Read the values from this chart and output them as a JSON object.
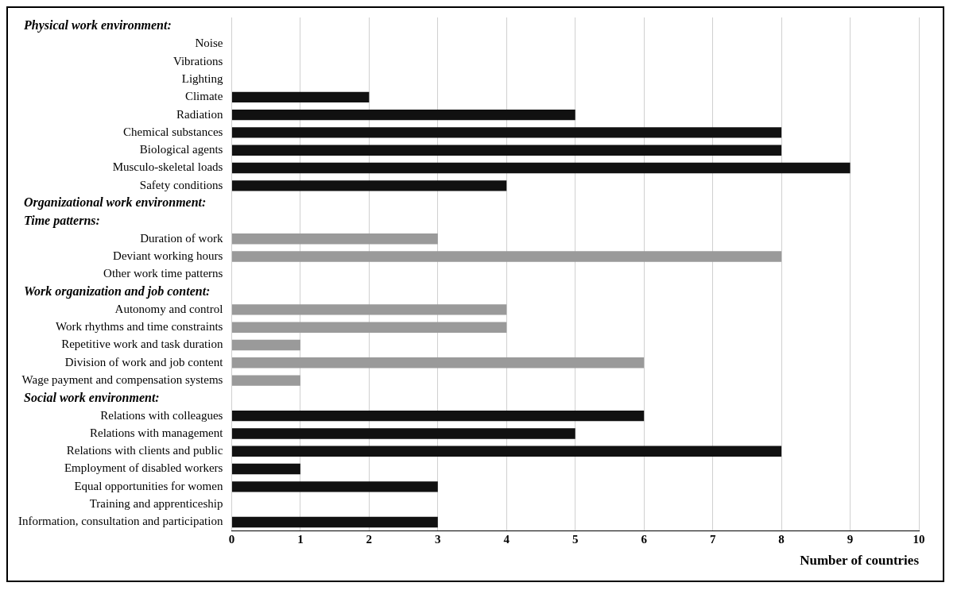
{
  "chart_data": {
    "type": "bar",
    "orientation": "horizontal",
    "xlabel": "Number of countries",
    "annotations": [
      "Physical work environment:",
      "Organizational work environment:",
      "Time patterns:",
      "Work organization and job content:",
      "Social work environment:"
    ],
    "categories": [
      null,
      "Noise",
      "Vibrations",
      "Lighting",
      "Climate",
      "Radiation",
      "Chemical substances",
      "Biological agents",
      "Musculo-skeletal loads",
      "Safety conditions",
      null,
      null,
      "Duration of work",
      "Deviant working hours",
      "Other work time patterns",
      null,
      "Autonomy and control",
      "Work rhythms and time constraints",
      "Repetitive work and task duration",
      "Division of work and job content",
      "Wage payment and compensation systems",
      null,
      "Relations with colleagues",
      "Relations with management",
      "Relations with clients and public",
      "Employment of disabled workers",
      "Equal opportunities for women",
      "Training and apprenticeship",
      "Information, consultation and participation"
    ],
    "values": [
      null,
      0,
      0,
      0,
      2,
      5,
      8,
      8,
      9,
      4,
      null,
      null,
      3,
      8,
      0,
      null,
      4,
      4,
      1,
      6,
      1,
      null,
      6,
      5,
      8,
      1,
      3,
      0,
      3
    ],
    "colors": [
      "#111111",
      "#111111",
      "#111111",
      "#111111",
      "#111111",
      "#111111",
      "#111111",
      "#111111",
      "#111111",
      "#111111",
      "#9a9a9a",
      "#9a9a9a",
      "#9a9a9a",
      "#9a9a9a",
      "#9a9a9a",
      "#9a9a9a",
      "#9a9a9a",
      "#9a9a9a",
      "#9a9a9a",
      "#9a9a9a",
      "#9a9a9a",
      "#111111",
      "#111111",
      "#111111",
      "#111111",
      "#111111",
      "#111111",
      "#111111",
      "#111111"
    ],
    "xlim": [
      0,
      10
    ],
    "xticks": [
      0,
      1,
      2,
      3,
      4,
      5,
      6,
      7,
      8,
      9,
      10
    ],
    "grid": "x",
    "legend": false
  }
}
